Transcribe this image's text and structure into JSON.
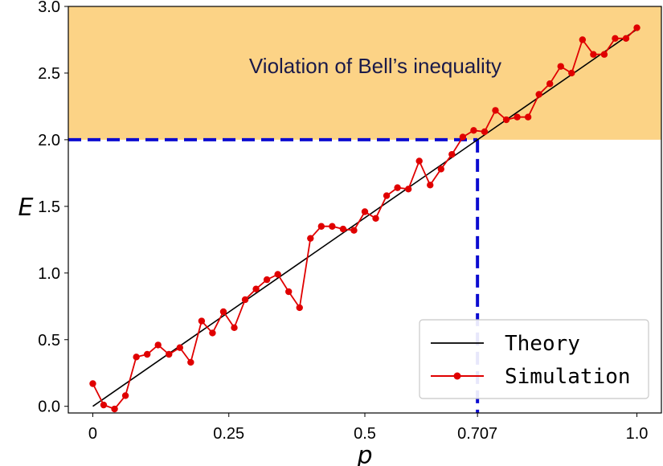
{
  "chart_data": {
    "type": "line",
    "title": "",
    "xlabel": "p",
    "ylabel": "E",
    "xlim": [
      -0.045,
      1.045
    ],
    "ylim": [
      -0.05,
      3.0
    ],
    "x_ticks": [
      0,
      0.25,
      0.5,
      0.707,
      1.0
    ],
    "x_tick_labels": [
      "0",
      "0.25",
      "0.5",
      "0.707",
      "1.0"
    ],
    "y_ticks": [
      0.0,
      0.5,
      1.0,
      1.5,
      2.0,
      2.5,
      3.0
    ],
    "y_tick_labels": [
      "0.0",
      "0.5",
      "1.0",
      "1.5",
      "2.0",
      "2.5",
      "3.0"
    ],
    "shaded_region": {
      "y_from": 2.0,
      "y_to": 3.0,
      "color": "#fcd386",
      "label": "Violation of Bell’s inequality"
    },
    "threshold": {
      "x": 0.707,
      "y": 2.0,
      "color": "#0b0bd0"
    },
    "series": [
      {
        "name": "Theory",
        "color": "#000000",
        "x": [
          0,
          1.0
        ],
        "values": [
          0,
          2.828
        ]
      },
      {
        "name": "Simulation",
        "color": "#e00000",
        "x": [
          0,
          0.02,
          0.04,
          0.06,
          0.08,
          0.1,
          0.12,
          0.14,
          0.16,
          0.18,
          0.2,
          0.22,
          0.24,
          0.26,
          0.28,
          0.3,
          0.32,
          0.34,
          0.36,
          0.38,
          0.4,
          0.42,
          0.44,
          0.46,
          0.48,
          0.5,
          0.52,
          0.54,
          0.56,
          0.58,
          0.6,
          0.62,
          0.64,
          0.66,
          0.68,
          0.7,
          0.72,
          0.74,
          0.76,
          0.78,
          0.8,
          0.82,
          0.84,
          0.86,
          0.88,
          0.9,
          0.92,
          0.94,
          0.96,
          0.98,
          1.0
        ],
        "values": [
          0.17,
          0.01,
          -0.02,
          0.08,
          0.37,
          0.39,
          0.46,
          0.39,
          0.44,
          0.33,
          0.64,
          0.55,
          0.71,
          0.59,
          0.8,
          0.88,
          0.95,
          0.99,
          0.86,
          0.74,
          1.26,
          1.35,
          1.35,
          1.33,
          1.32,
          1.46,
          1.41,
          1.58,
          1.64,
          1.63,
          1.84,
          1.66,
          1.78,
          1.89,
          2.02,
          2.07,
          2.06,
          2.22,
          2.15,
          2.17,
          2.17,
          2.34,
          2.42,
          2.55,
          2.5,
          2.75,
          2.64,
          2.64,
          2.76,
          2.76,
          2.84
        ]
      }
    ],
    "legend": {
      "location": "lower-right",
      "entries": [
        "Theory",
        "Simulation"
      ]
    }
  }
}
